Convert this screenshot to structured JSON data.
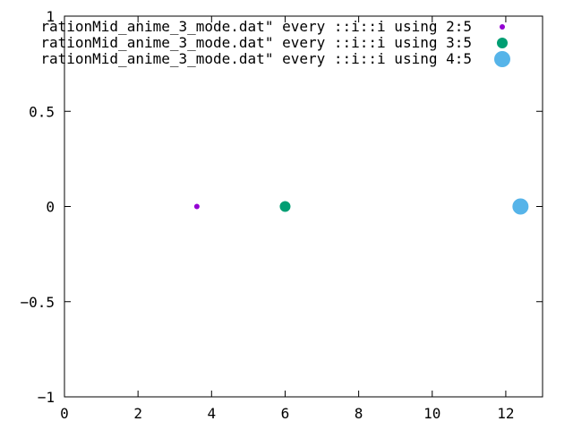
{
  "chart_data": {
    "type": "scatter",
    "title": "",
    "xlabel": "",
    "ylabel": "",
    "xlim": [
      0,
      13
    ],
    "ylim": [
      -1,
      1
    ],
    "xticks": [
      0,
      2,
      4,
      6,
      8,
      10,
      12
    ],
    "yticks": [
      -1,
      -0.5,
      0,
      0.5,
      1
    ],
    "xtick_labels": [
      "0",
      "2",
      "4",
      "6",
      "8",
      "10",
      "12"
    ],
    "ytick_labels": [
      "−1",
      "−0.5",
      "0",
      "0.5",
      "1"
    ],
    "grid": false,
    "legend_position": "top-right",
    "series": [
      {
        "name": "rationMid_anime_3_mode.dat\" every ::i::i using 2:5",
        "color": "#9400d3",
        "marker": "small-dot",
        "x": [
          3.6
        ],
        "y": [
          0
        ]
      },
      {
        "name": "rationMid_anime_3_mode.dat\" every ::i::i using 3:5",
        "color": "#009e73",
        "marker": "medium-dot",
        "x": [
          6.0
        ],
        "y": [
          0
        ]
      },
      {
        "name": "rationMid_anime_3_mode.dat\" every ::i::i using 4:5",
        "color": "#56b4e9",
        "marker": "large-dot",
        "x": [
          12.4
        ],
        "y": [
          0
        ]
      }
    ]
  }
}
